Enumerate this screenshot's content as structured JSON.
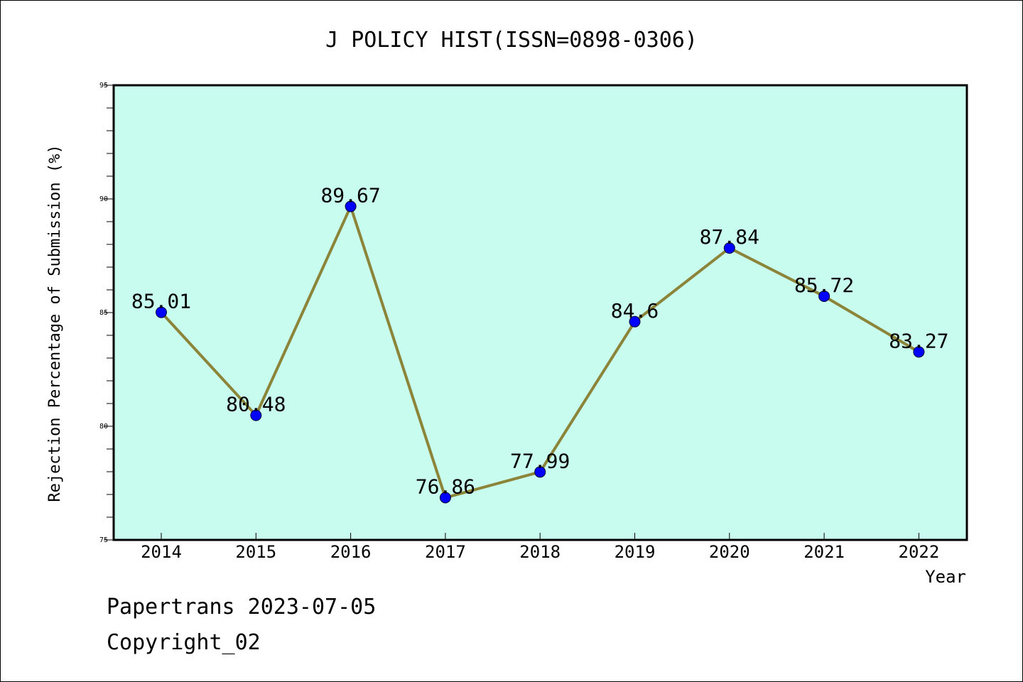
{
  "chart_data": {
    "type": "line",
    "title": "J POLICY HIST(ISSN=0898-0306)",
    "xlabel": "Year",
    "ylabel": "Rejection Percentage of Submission (%)",
    "categories": [
      "2014",
      "2015",
      "2016",
      "2017",
      "2018",
      "2019",
      "2020",
      "2021",
      "2022"
    ],
    "series": [
      {
        "values": [
          85.01,
          80.48,
          89.67,
          76.86,
          77.99,
          84.6,
          87.84,
          85.72,
          83.27
        ],
        "labels": [
          "85.01",
          "80.48",
          "89.67",
          "76.86",
          "77.99",
          "84.6",
          "87.84",
          "85.72",
          "83.27"
        ]
      }
    ],
    "ylim": [
      75,
      95
    ],
    "yticks": [
      "75",
      "80",
      "85",
      "90",
      "95"
    ],
    "grid": false,
    "colors": {
      "plot_background": "#c8fcee",
      "line": "#8b8439",
      "marker": "#0000ff"
    }
  },
  "footer": {
    "line1": "Papertrans 2023-07-05",
    "line2": "Copyright_02"
  }
}
